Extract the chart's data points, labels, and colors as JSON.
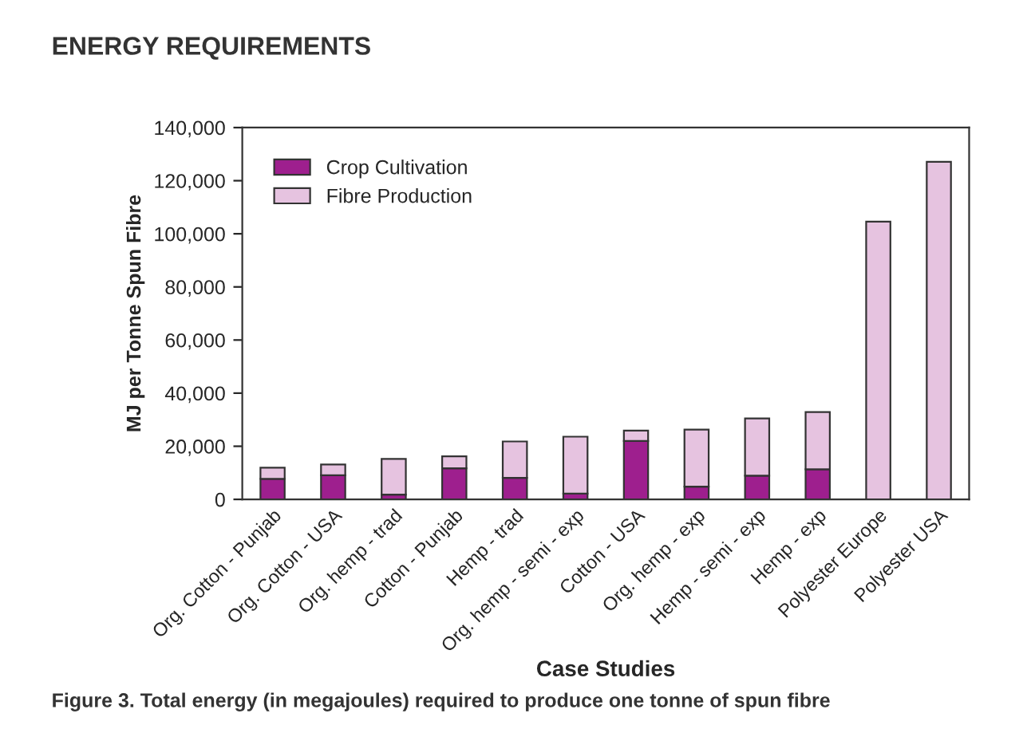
{
  "chart_data": {
    "type": "bar",
    "title": "ENERGY REQUIREMENTS",
    "xlabel": "Case Studies",
    "ylabel": "MJ per Tonne Spun Fibre",
    "annotations": [
      "Figure 3. Total energy (in megajoules) required to produce one tonne of spun fibre"
    ],
    "categories": [
      "Org. Cotton - Punjab",
      "Org. Cotton - USA",
      "Org. hemp - trad",
      "Cotton - Punjab",
      "Hemp - trad",
      "Org. hemp - semi - exp",
      "Cotton - USA",
      "Org. hemp - exp",
      "Hemp - semi - exp",
      "Hemp - exp",
      "Polyester Europe",
      "Polyester USA"
    ],
    "stacked": true,
    "series": [
      {
        "name": "Crop Cultivation",
        "color": "#9e1f8e",
        "values": [
          7700,
          9100,
          1800,
          11700,
          8100,
          2200,
          22000,
          4800,
          8900,
          11300,
          0,
          0
        ]
      },
      {
        "name": "Fibre Production",
        "color": "#e6c3e0",
        "values": [
          4200,
          4000,
          13400,
          4500,
          13700,
          21400,
          3900,
          21500,
          21600,
          21600,
          104600,
          127100
        ]
      }
    ],
    "ylim": [
      0,
      140000
    ],
    "yticks": [
      {
        "value": 0,
        "label": "0"
      },
      {
        "value": 20000,
        "label": "20,000"
      },
      {
        "value": 40000,
        "label": "40,000"
      },
      {
        "value": 60000,
        "label": "60,000"
      },
      {
        "value": 80000,
        "label": "80,000"
      },
      {
        "value": 100000,
        "label": "100,000"
      },
      {
        "value": 120000,
        "label": "120,000"
      },
      {
        "value": 140000,
        "label": "140,000"
      }
    ],
    "grid": false,
    "legend": "top left"
  }
}
